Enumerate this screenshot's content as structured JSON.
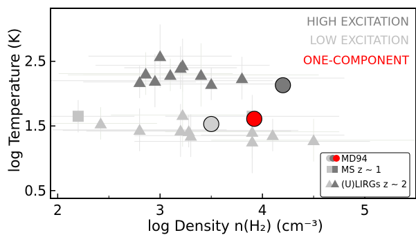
{
  "chart_data": {
    "type": "scatter",
    "title": "",
    "xlabel": "log Density n(H₂) (cm⁻³)",
    "ylabel": "log Temperature (K)",
    "xlim": [
      1.93,
      5.5
    ],
    "ylim": [
      0.38,
      3.32
    ],
    "x_ticks": [
      "2",
      "3",
      "4",
      "5"
    ],
    "y_ticks": [
      "0.5",
      "1.5",
      "2.5"
    ],
    "x_tick_values": [
      2,
      3,
      4,
      5
    ],
    "y_tick_values": [
      0.5,
      1.5,
      2.5
    ],
    "grid": false,
    "legend_position": "bottom-right",
    "annotations": [
      {
        "text": "HIGH EXCITATION",
        "color": "#808080"
      },
      {
        "text": "LOW EXCITATION",
        "color": "#c0c0c0"
      },
      {
        "text": "ONE-COMPONENT",
        "color": "#ff0000"
      }
    ],
    "legend": [
      {
        "label": "MD94",
        "marker": "circle"
      },
      {
        "label": "MS z ∼ 1",
        "marker": "square"
      },
      {
        "label": "(U)LIRGs z ∼ 2",
        "marker": "triangle"
      }
    ],
    "series": [
      {
        "name": "(U)LIRGs z ∼ 2",
        "excitation": "high",
        "marker": "triangle",
        "color": "#7a7a7a",
        "x": [
          2.8,
          2.86,
          2.95,
          3.0,
          3.1,
          3.2,
          3.22,
          3.4,
          3.5,
          3.8
        ],
        "y": [
          2.18,
          2.31,
          2.2,
          2.58,
          2.29,
          2.4,
          2.44,
          2.29,
          2.15,
          2.24
        ]
      },
      {
        "name": "(U)LIRGs z ∼ 2",
        "excitation": "low",
        "marker": "triangle",
        "color": "#c4c4c4",
        "x": [
          2.42,
          2.8,
          3.2,
          3.22,
          3.28,
          3.3,
          3.9,
          3.9,
          4.1,
          4.5
        ],
        "y": [
          1.54,
          1.44,
          1.43,
          1.67,
          1.42,
          1.35,
          1.41,
          1.26,
          1.36,
          1.28
        ]
      },
      {
        "name": "MS z ∼ 1",
        "excitation": "low",
        "marker": "square",
        "color": "#c4c4c4",
        "x": [
          2.2,
          3.9
        ],
        "y": [
          1.65,
          1.65
        ]
      },
      {
        "name": "MD94",
        "excitation": "high",
        "marker": "circle",
        "color": "#7a7a7a",
        "x": [
          4.2
        ],
        "y": [
          2.13
        ]
      },
      {
        "name": "MD94",
        "excitation": "low",
        "marker": "circle",
        "color": "#d0d0d0",
        "x": [
          3.5
        ],
        "y": [
          1.53
        ]
      },
      {
        "name": "MD94",
        "excitation": "one-component",
        "marker": "circle",
        "color": "#ff0000",
        "x": [
          3.92
        ],
        "y": [
          1.61
        ]
      }
    ]
  }
}
